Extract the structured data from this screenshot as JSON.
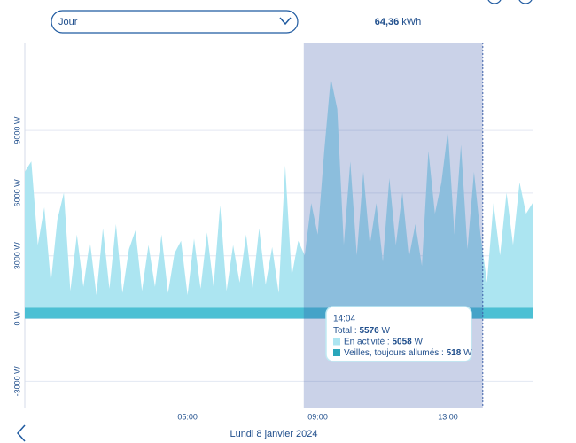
{
  "header": {
    "period": "Jour",
    "total_value": "64,36",
    "total_unit": "kWh"
  },
  "chart_data": {
    "type": "area",
    "stacked": true,
    "x": [
      0,
      0.2,
      0.4,
      0.6,
      0.8,
      1,
      1.2,
      1.4,
      1.6,
      1.8,
      2,
      2.2,
      2.4,
      2.6,
      2.8,
      3,
      3.2,
      3.4,
      3.6,
      3.8,
      4,
      4.2,
      4.4,
      4.6,
      4.8,
      5,
      5.2,
      5.4,
      5.6,
      5.8,
      6,
      6.2,
      6.4,
      6.6,
      6.8,
      7,
      7.2,
      7.4,
      7.6,
      7.8,
      8,
      8.2,
      8.4,
      8.6,
      8.8,
      9,
      9.2,
      9.4,
      9.6,
      9.8,
      10,
      10.2,
      10.4,
      10.6,
      10.8,
      11,
      11.2,
      11.4,
      11.6,
      11.8,
      12,
      12.2,
      12.4,
      12.6,
      12.8,
      13,
      13.2,
      13.4,
      13.6,
      13.8,
      14,
      14.2,
      14.4,
      14.6,
      14.8,
      15,
      15.2,
      15.4,
      15.6
    ],
    "series": [
      {
        "name": "Veilles, toujours allumés",
        "color": "#4cc0d4",
        "values": [
          518,
          518,
          518,
          518,
          518,
          518,
          518,
          518,
          518,
          518,
          518,
          518,
          518,
          518,
          518,
          518,
          518,
          518,
          518,
          518,
          518,
          518,
          518,
          518,
          518,
          518,
          518,
          518,
          518,
          518,
          518,
          518,
          518,
          518,
          518,
          518,
          518,
          518,
          518,
          518,
          518,
          518,
          518,
          518,
          518,
          518,
          518,
          518,
          518,
          518,
          518,
          518,
          518,
          518,
          518,
          518,
          518,
          518,
          518,
          518,
          518,
          518,
          518,
          518,
          518,
          518,
          518,
          518,
          518,
          518,
          518,
          518,
          518,
          518,
          518,
          518,
          518,
          518,
          518
        ]
      },
      {
        "name": "En activité",
        "color": "#ace5f1",
        "values": [
          6500,
          7000,
          3000,
          4800,
          1200,
          4200,
          5500,
          800,
          3500,
          1000,
          3200,
          600,
          3800,
          900,
          4000,
          700,
          2800,
          3700,
          800,
          3000,
          1000,
          3500,
          700,
          2600,
          3200,
          600,
          3300,
          900,
          3600,
          1000,
          4900,
          800,
          3000,
          1200,
          3500,
          900,
          3800,
          1100,
          2900,
          700,
          6800,
          1500,
          3200,
          2500,
          5000,
          3500,
          7500,
          11000,
          9500,
          3000,
          7000,
          2500,
          6500,
          3000,
          5000,
          2200,
          6200,
          3000,
          5500,
          2400,
          4000,
          2000,
          7500,
          4500,
          6000,
          8500,
          3500,
          7800,
          2800,
          6500,
          3500,
          1200,
          5000,
          2500,
          5500,
          3000,
          6000,
          4500,
          5000
        ]
      }
    ],
    "xlim": [
      0,
      15.6
    ],
    "xticks": [
      {
        "value": 5,
        "label": "05:00"
      },
      {
        "value": 9,
        "label": "09:00"
      },
      {
        "value": 13,
        "label": "13:00"
      }
    ],
    "ylim": [
      -4300,
      13200
    ],
    "yticks": [
      {
        "value": -3000,
        "label": "-3000 W"
      },
      {
        "value": 0,
        "label": "0 W"
      },
      {
        "value": 3000,
        "label": "3000 W"
      },
      {
        "value": 6000,
        "label": "6000 W"
      },
      {
        "value": 9000,
        "label": "9000 W"
      }
    ],
    "grid": true,
    "selection": [
      8.57,
      14.07
    ],
    "tooltip": {
      "time": "14:04",
      "rows": [
        {
          "label": "Total :",
          "value": "5576",
          "unit": "W"
        },
        {
          "label": "En activité :",
          "value": "5058",
          "unit": "W"
        },
        {
          "label": "Veilles, toujours allumés :",
          "value": "518",
          "unit": "W"
        }
      ]
    }
  },
  "footer": {
    "date": "Lundi 8 janvier 2024"
  }
}
